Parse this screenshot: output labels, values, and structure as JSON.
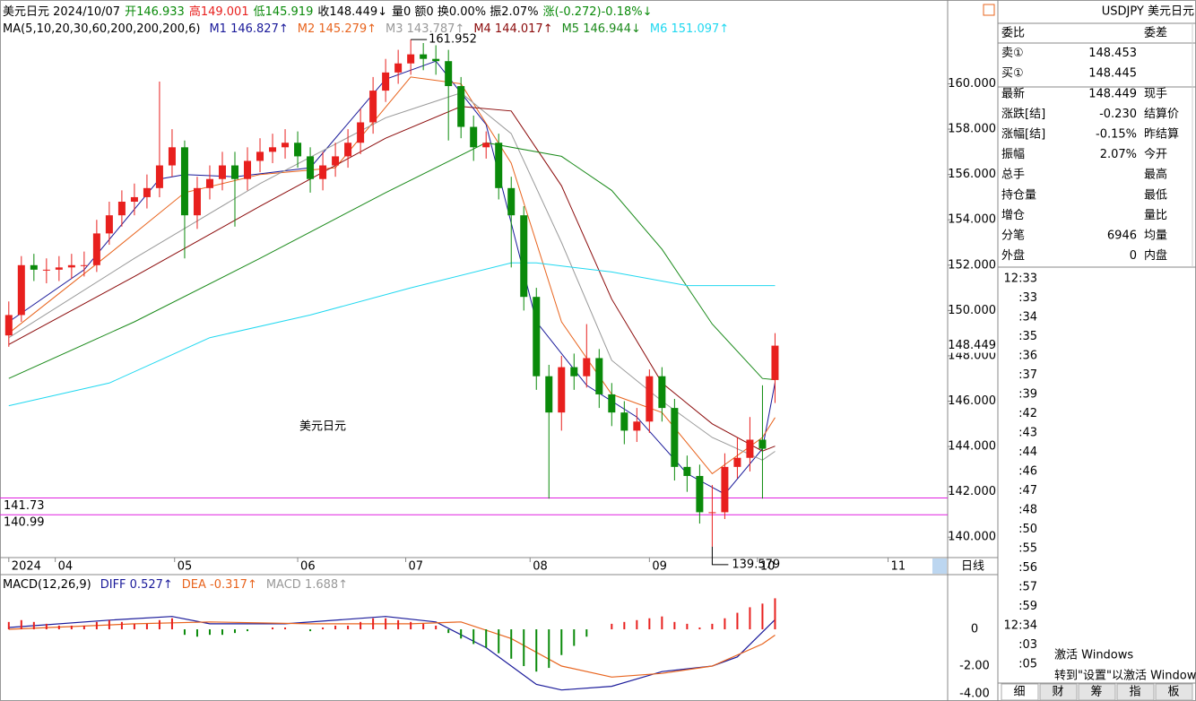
{
  "header": {
    "parts": [
      {
        "text": "美元日元 2024/10/07",
        "color": "#000000"
      },
      {
        "text": "开146.933",
        "color": "#0a8a0a"
      },
      {
        "text": "高149.001",
        "color": "#e8201e"
      },
      {
        "text": "低145.919",
        "color": "#0a8a0a"
      },
      {
        "text": "收148.449↓",
        "color": "#000000"
      },
      {
        "text": "量0 额0 换0.00% 振2.07%",
        "color": "#000000"
      },
      {
        "text": "涨(-0.272)-0.18%↓",
        "color": "#0a8a0a"
      }
    ]
  },
  "chart_data": [
    {
      "type": "candlestick",
      "ma_title": "MA(5,10,20,30,60,200,200,200,6)",
      "xlim": [
        -0.7,
        74.6
      ],
      "ylim": [
        139.1,
        163.5
      ],
      "yticks": [
        {
          "value": 140,
          "label": "140.000"
        },
        {
          "value": 142,
          "label": "142.000"
        },
        {
          "value": 144,
          "label": "144.000"
        },
        {
          "value": 146,
          "label": "146.000"
        },
        {
          "value": 148,
          "label": "148.000"
        },
        {
          "value": 150,
          "label": "150.000"
        },
        {
          "value": 152,
          "label": "152.000"
        },
        {
          "value": 154,
          "label": "154.000"
        },
        {
          "value": 156,
          "label": "156.000"
        },
        {
          "value": 158,
          "label": "158.000"
        },
        {
          "value": 160,
          "label": "160.000"
        }
      ],
      "xticks": [
        {
          "value": 0,
          "label": "2024"
        },
        {
          "value": 3.7,
          "label": "04"
        },
        {
          "value": 13.2,
          "label": "05"
        },
        {
          "value": 23,
          "label": "06"
        },
        {
          "value": 31.6,
          "label": "07"
        },
        {
          "value": 41.5,
          "label": "08"
        },
        {
          "value": 51,
          "label": "09"
        },
        {
          "value": 59.6,
          "label": "10"
        },
        {
          "value": 70,
          "label": "11"
        }
      ],
      "up_color": "#e8201e",
      "down_color": "#0a8a0a",
      "open": [
        148.9,
        149.8,
        152.0,
        151.8,
        151.8,
        151.9,
        152.0,
        152.0,
        153.4,
        154.2,
        154.8,
        155.0,
        155.4,
        156.4,
        157.2,
        154.2,
        155.4,
        155.8,
        156.4,
        155.8,
        156.6,
        157.0,
        157.2,
        157.4,
        156.8,
        155.8,
        156.4,
        156.8,
        157.4,
        158.3,
        159.7,
        160.5,
        160.9,
        161.3,
        161.1,
        161.0,
        159.9,
        158.1,
        157.2,
        157.4,
        155.4,
        154.2,
        150.6,
        147.1,
        145.5,
        147.5,
        147.1,
        147.9,
        146.3,
        145.5,
        144.7,
        145.1,
        147.1,
        145.7,
        143.1,
        142.7,
        141.1,
        141.1,
        143.1,
        143.5,
        144.3,
        146.933
      ],
      "high": [
        150.4,
        152.4,
        152.5,
        152.3,
        152.4,
        152.5,
        152.6,
        154.0,
        154.8,
        155.3,
        155.6,
        156.0,
        160.1,
        158.0,
        157.5,
        155.9,
        156.4,
        157.0,
        157.0,
        157.2,
        157.6,
        157.8,
        158.0,
        157.9,
        157.2,
        157.0,
        157.4,
        158.0,
        158.9,
        160.3,
        161.1,
        161.5,
        161.952,
        161.8,
        161.7,
        161.5,
        160.3,
        158.6,
        157.9,
        157.8,
        155.9,
        154.6,
        151.0,
        147.6,
        148.0,
        148.1,
        149.4,
        148.3,
        146.8,
        146.0,
        145.7,
        147.4,
        147.5,
        146.1,
        143.6,
        143.2,
        142.3,
        143.7,
        144.4,
        145.3,
        146.7,
        149.001
      ],
      "low": [
        148.4,
        149.5,
        151.3,
        151.2,
        151.3,
        151.4,
        151.5,
        151.7,
        152.9,
        153.7,
        154.2,
        154.5,
        155.0,
        155.9,
        152.3,
        153.6,
        154.9,
        155.3,
        153.7,
        155.3,
        156.1,
        156.5,
        156.7,
        156.3,
        155.2,
        155.3,
        155.9,
        156.3,
        156.9,
        157.8,
        159.2,
        160.0,
        160.4,
        160.6,
        160.4,
        157.5,
        157.6,
        156.6,
        156.7,
        154.9,
        151.9,
        150.0,
        146.5,
        141.7,
        144.7,
        146.5,
        146.6,
        145.7,
        144.9,
        144.1,
        144.2,
        144.6,
        145.1,
        142.5,
        142.0,
        140.6,
        139.579,
        140.8,
        142.6,
        142.9,
        141.7,
        145.919
      ],
      "close": [
        149.8,
        152.0,
        151.8,
        151.8,
        151.9,
        152.0,
        152.0,
        153.4,
        154.2,
        154.8,
        155.0,
        155.4,
        156.4,
        157.2,
        154.2,
        155.4,
        155.8,
        156.4,
        155.8,
        156.6,
        157.0,
        157.2,
        157.4,
        156.8,
        155.8,
        156.4,
        156.8,
        157.4,
        158.3,
        159.7,
        160.5,
        160.9,
        161.3,
        161.1,
        161.0,
        159.9,
        158.1,
        157.2,
        157.4,
        155.4,
        154.2,
        150.6,
        147.1,
        145.5,
        147.5,
        147.1,
        147.9,
        146.3,
        145.5,
        144.7,
        145.1,
        147.1,
        145.7,
        143.1,
        142.7,
        141.1,
        141.1,
        143.1,
        143.5,
        144.3,
        143.9,
        148.449
      ],
      "ma_series": [
        {
          "name": "M1 146.827↑",
          "color": "#1a1a9a",
          "x": [
            0,
            6,
            12,
            14,
            18,
            24,
            30,
            34,
            38,
            42,
            46,
            50,
            54,
            57,
            60,
            61
          ],
          "values": [
            149.5,
            151.8,
            155.8,
            156.0,
            155.9,
            156.3,
            160.2,
            161.0,
            158.2,
            149.5,
            146.7,
            145.3,
            142.8,
            141.9,
            143.9,
            146.827
          ]
        },
        {
          "name": "M2 145.279↑",
          "color": "#e8641e",
          "x": [
            0,
            8,
            14,
            20,
            26,
            32,
            36,
            40,
            44,
            48,
            52,
            56,
            60,
            61
          ],
          "values": [
            149.0,
            152.5,
            155.2,
            156.0,
            156.3,
            160.3,
            160.0,
            156.5,
            149.5,
            146.3,
            145.5,
            142.8,
            144.4,
            145.279
          ]
        },
        {
          "name": "M3 143.787↑",
          "color": "#999999",
          "x": [
            0,
            10,
            20,
            30,
            36,
            40,
            44,
            48,
            52,
            56,
            60,
            61
          ],
          "values": [
            148.8,
            152.3,
            155.6,
            158.5,
            159.6,
            157.8,
            153.0,
            147.8,
            146.0,
            144.4,
            143.4,
            143.787
          ]
        },
        {
          "name": "M4 144.017↑",
          "color": "#8b0a0a",
          "x": [
            0,
            10,
            20,
            30,
            36,
            40,
            44,
            48,
            52,
            56,
            60,
            61
          ],
          "values": [
            148.5,
            151.5,
            154.6,
            157.6,
            159.0,
            158.8,
            155.5,
            150.5,
            146.8,
            145.0,
            143.8,
            144.017
          ]
        },
        {
          "name": "M5 146.944↓",
          "color": "#1a8a1a",
          "x": [
            0,
            10,
            20,
            30,
            38,
            44,
            48,
            52,
            56,
            60,
            61
          ],
          "values": [
            147.0,
            149.5,
            152.3,
            155.2,
            157.4,
            156.8,
            155.3,
            152.7,
            149.4,
            147.0,
            146.944
          ]
        },
        {
          "name": "M6 151.097↑",
          "color": "#20d8f0",
          "x": [
            0,
            8,
            16,
            24,
            32,
            40,
            42,
            48,
            54,
            61
          ],
          "values": [
            145.8,
            146.8,
            148.8,
            149.8,
            151.0,
            152.1,
            152.1,
            151.7,
            151.1,
            151.097
          ]
        }
      ],
      "hlines": [
        {
          "value": 141.73,
          "color": "#e020e0"
        },
        {
          "value": 140.99,
          "color": "#e020e0"
        }
      ],
      "annotations": [
        {
          "value": 161.952
        },
        {
          "value": 139.579
        }
      ],
      "last_price": 148.449,
      "last_color": "#e8201e",
      "chart_label": "美元日元",
      "chart_label_color": "#e83838",
      "period_label": "日线"
    },
    {
      "type": "macd",
      "title": "MACD(12,26,9)",
      "xlim": [
        -0.7,
        74.6
      ],
      "ylim": [
        -3.9,
        2.05
      ],
      "yticks": [
        0,
        {
          "value": -2,
          "label": "-2.00"
        },
        {
          "value": -4,
          "label": "-4.00"
        }
      ],
      "series": [
        {
          "name": "DIFF 0.527↑",
          "color": "#1a1a9a",
          "x": [
            0,
            8,
            13,
            16,
            22,
            30,
            34,
            38,
            42,
            44,
            48,
            52,
            56,
            58,
            61
          ],
          "values": [
            0.1,
            0.5,
            0.7,
            0.3,
            0.3,
            0.7,
            0.4,
            -1.0,
            -3.0,
            -3.3,
            -3.1,
            -2.3,
            -2.0,
            -1.5,
            0.527
          ]
        },
        {
          "name": "DEA -0.317↑",
          "color": "#e8641e",
          "x": [
            0,
            10,
            16,
            24,
            32,
            36,
            40,
            44,
            48,
            52,
            56,
            60,
            61
          ],
          "values": [
            0.0,
            0.3,
            0.4,
            0.3,
            0.3,
            0.4,
            -0.5,
            -2.0,
            -2.6,
            -2.4,
            -2.0,
            -0.8,
            -0.317
          ]
        },
        {
          "name": "MACD 1.688↑",
          "color": "#999999",
          "pos_color": "#e8201e",
          "neg_color": "#0a8a0a",
          "values": [
            0.4,
            0.5,
            0.4,
            0.3,
            0.2,
            0.2,
            0.2,
            0.4,
            0.5,
            0.4,
            0.3,
            0.3,
            0.5,
            0.6,
            -0.3,
            -0.4,
            -0.3,
            -0.3,
            -0.2,
            -0.1,
            0.0,
            0.1,
            0.1,
            0.0,
            -0.1,
            0.1,
            0.2,
            0.2,
            0.4,
            0.6,
            0.6,
            0.5,
            0.4,
            0.3,
            0.2,
            -0.2,
            -0.5,
            -0.8,
            -1.0,
            -1.3,
            -1.6,
            -2.0,
            -2.3,
            -2.1,
            -1.4,
            -0.9,
            -0.4,
            0.0,
            0.3,
            0.4,
            0.5,
            0.6,
            0.7,
            0.4,
            0.3,
            0.1,
            0.3,
            0.6,
            0.9,
            1.2,
            1.4,
            1.688
          ]
        }
      ]
    }
  ],
  "quote": {
    "title": "USDJPY 美元日元",
    "rows": [
      {
        "label": "委比",
        "right": "委差"
      },
      {
        "label": "卖①",
        "value": "148.453",
        "color": "#0a8a0a"
      },
      {
        "label": "买①",
        "value": "148.445",
        "color": "#0a8a0a"
      },
      {
        "label": "最新",
        "value": "148.449",
        "color": "#0a8a0a",
        "right": "现手"
      },
      {
        "label": "涨跌[结]",
        "value": "-0.230",
        "color": "#0a8a0a",
        "right": "结算价"
      },
      {
        "label": "涨幅[结]",
        "value": "-0.15%",
        "color": "#0a8a0a",
        "right": "昨结算"
      },
      {
        "label": "振幅",
        "value": "2.07%",
        "color": "#000000",
        "right": "今开"
      },
      {
        "label": "总手",
        "right": "最高"
      },
      {
        "label": "持仓量",
        "right": "最低"
      },
      {
        "label": "增仓",
        "right": "量比"
      },
      {
        "label": "分笔",
        "value": "6946",
        "color": "#000000",
        "right": "均量"
      },
      {
        "label": "外盘",
        "value": "0",
        "color": "#e8201e",
        "right": "内盘"
      }
    ]
  },
  "times": [
    "12:33",
    ":33",
    ":34",
    ":35",
    ":36",
    ":37",
    ":39",
    ":42",
    ":43",
    ":44",
    ":46",
    ":47",
    ":48",
    ":50",
    ":55",
    ":56",
    ":57",
    ":59",
    "12:34",
    ":03",
    ":05"
  ],
  "tabs": [
    "细",
    "财",
    "筹",
    "指",
    "板"
  ],
  "watermark": [
    "激活 Windows",
    "转到\"设置\"以激活 Windows"
  ]
}
